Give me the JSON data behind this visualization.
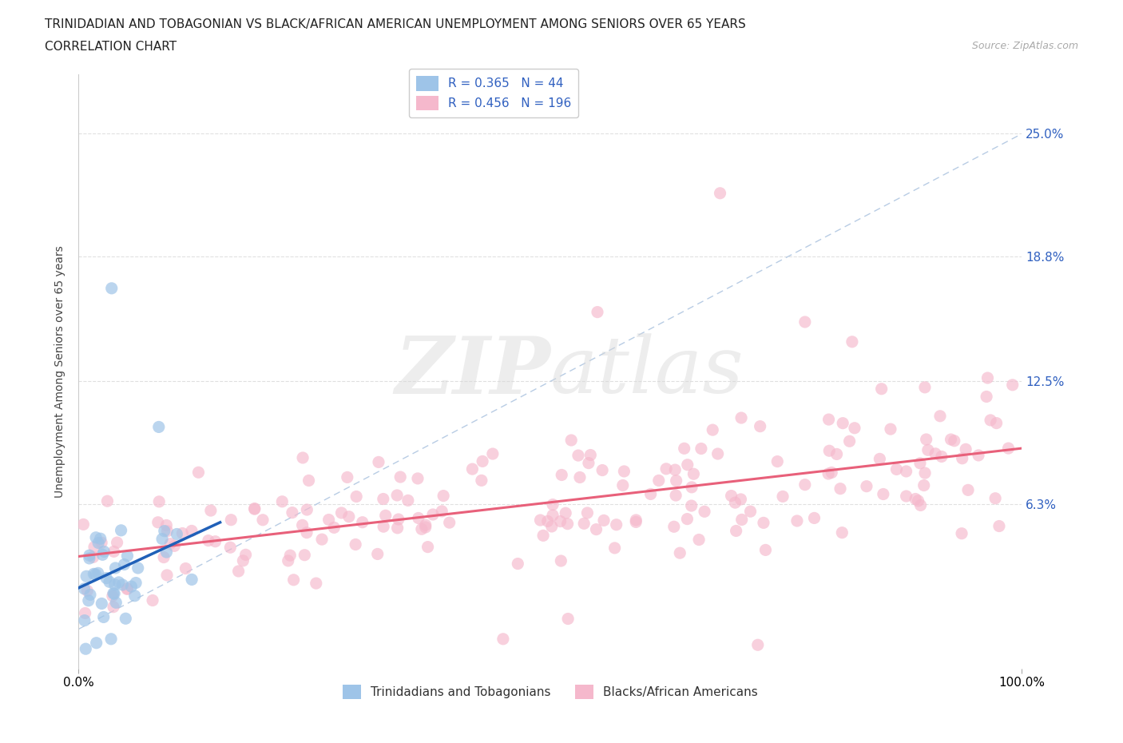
{
  "title_line1": "TRINIDADIAN AND TOBAGONIAN VS BLACK/AFRICAN AMERICAN UNEMPLOYMENT AMONG SENIORS OVER 65 YEARS",
  "title_line2": "CORRELATION CHART",
  "source": "Source: ZipAtlas.com",
  "ylabel": "Unemployment Among Seniors over 65 years",
  "xlim": [
    0,
    100
  ],
  "ylim": [
    -2,
    28
  ],
  "yticks": [
    0,
    6.3,
    12.5,
    18.8,
    25.0
  ],
  "ytick_labels_right": [
    "",
    "6.3%",
    "12.5%",
    "18.8%",
    "25.0%"
  ],
  "xticks": [
    0,
    100
  ],
  "xtick_labels": [
    "0.0%",
    "100.0%"
  ],
  "legend_label_blue": "R = 0.365   N = 44",
  "legend_label_pink": "R = 0.456   N = 196",
  "legend_group_blue": "Trinidadians and Tobagonians",
  "legend_group_pink": "Blacks/African Americans",
  "title_fontsize": 11,
  "source_fontsize": 9,
  "axis_label_fontsize": 10,
  "tick_fontsize": 11,
  "legend_fontsize": 11,
  "watermark": "ZIPatlas",
  "blue_scatter_color": "#9ec4e8",
  "pink_scatter_color": "#f5b8cc",
  "blue_line_color": "#2060b8",
  "pink_line_color": "#e8607a",
  "diag_line_color": "#b8cce4",
  "legend_r_color": "#3060c0",
  "N_blue": 44,
  "N_pink": 196,
  "seed": 42
}
